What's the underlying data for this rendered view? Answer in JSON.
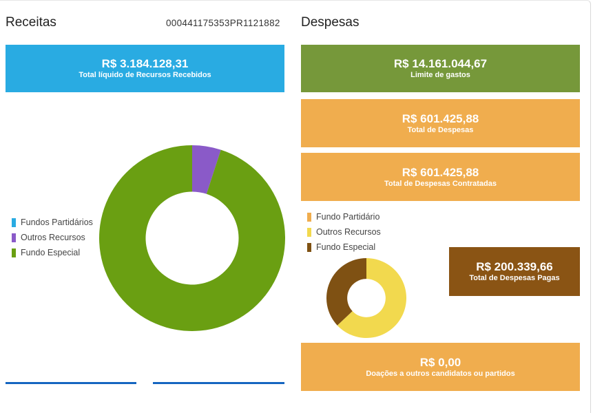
{
  "receitas": {
    "title": "Receitas",
    "code": "000441175353PR1121882",
    "total_value": "R$ 3.184.128,31",
    "total_label": "Total líquido de Recursos Recebidos",
    "legend": [
      {
        "label": "Fundos Partidários",
        "color": "#29abe2"
      },
      {
        "label": "Outros Recursos",
        "color": "#8a5ac8"
      },
      {
        "label": "Fundo Especial",
        "color": "#6a9f12"
      }
    ],
    "chart_data": {
      "type": "pie",
      "categories": [
        "Fundos Partidários",
        "Outros Recursos",
        "Fundo Especial"
      ],
      "values": [
        0,
        5,
        95
      ],
      "colors": [
        "#29abe2",
        "#8a5ac8",
        "#6a9f12"
      ]
    }
  },
  "despesas": {
    "title": "Despesas",
    "limite_value": "R$ 14.161.044,67",
    "limite_label": "Limite de gastos",
    "total_value": "R$ 601.425,88",
    "total_label": "Total de Despesas",
    "contratadas_value": "R$ 601.425,88",
    "contratadas_label": "Total de Despesas Contratadas",
    "pagas_value": "R$ 200.339,66",
    "pagas_label": "Total de Despesas Pagas",
    "doacoes_value": "R$ 0,00",
    "doacoes_label": "Doações a outros candidatos ou partidos",
    "legend": [
      {
        "label": "Fundo Partidário",
        "color": "#f0ad4e"
      },
      {
        "label": "Outros Recursos",
        "color": "#f2d94e"
      },
      {
        "label": "Fundo Especial",
        "color": "#7f5113"
      }
    ],
    "chart_data": {
      "type": "pie",
      "categories": [
        "Fundo Partidário",
        "Outros Recursos",
        "Fundo Especial"
      ],
      "values": [
        0,
        63,
        37
      ],
      "colors": [
        "#f0ad4e",
        "#f2d94e",
        "#7f5113"
      ]
    }
  },
  "colors": {
    "blue_tile": "#29abe2",
    "green_tile": "#76983a",
    "orange_tile": "#f0ad4e",
    "brown_tile": "#8a5414"
  }
}
